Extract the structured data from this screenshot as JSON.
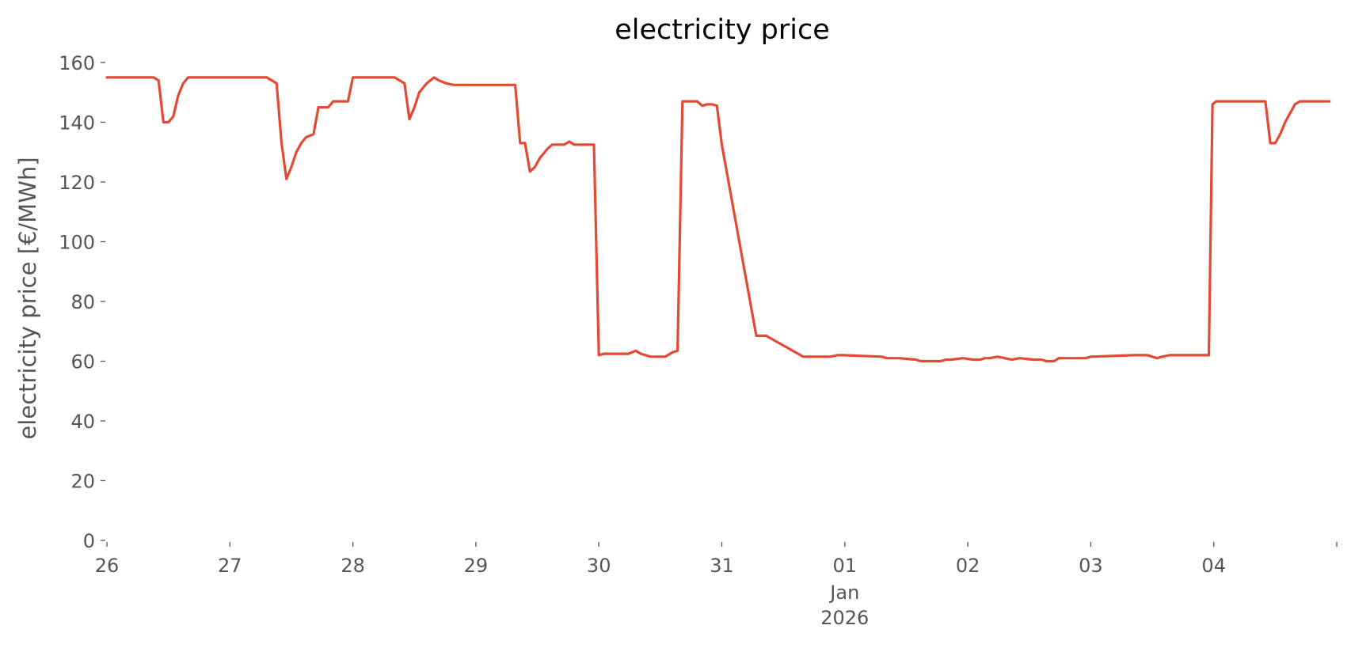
{
  "chart_data": {
    "type": "line",
    "title": "electricity price",
    "xlabel": "",
    "ylabel": "electricity price [€/MWh]",
    "ylim": [
      0,
      160
    ],
    "yticks": [
      0,
      20,
      40,
      60,
      80,
      100,
      120,
      140,
      160
    ],
    "xlim": [
      0,
      10
    ],
    "x_unit": "day",
    "x_ticks": [
      {
        "x": 0,
        "label": "26",
        "sublabel": ""
      },
      {
        "x": 1,
        "label": "27",
        "sublabel": ""
      },
      {
        "x": 2,
        "label": "28",
        "sublabel": ""
      },
      {
        "x": 3,
        "label": "29",
        "sublabel": ""
      },
      {
        "x": 4,
        "label": "30",
        "sublabel": ""
      },
      {
        "x": 5,
        "label": "31",
        "sublabel": ""
      },
      {
        "x": 6,
        "label": "01",
        "sublabel": "Jan",
        "sublabel2": "2026"
      },
      {
        "x": 7,
        "label": "02",
        "sublabel": ""
      },
      {
        "x": 8,
        "label": "03",
        "sublabel": ""
      },
      {
        "x": 9,
        "label": "04",
        "sublabel": ""
      },
      {
        "x": 10,
        "label": "",
        "sublabel": ""
      }
    ],
    "grid": false,
    "colors": {
      "line": "#E24A33",
      "text": "#555555",
      "title": "#000000"
    },
    "series": [
      {
        "x": [
          0,
          0.35,
          0.38,
          0.42,
          0.46,
          0.5,
          0.54,
          0.58,
          0.62,
          0.66,
          0.7,
          1.0,
          1.3,
          1.38,
          1.42,
          1.46,
          1.5,
          1.54,
          1.58,
          1.62,
          1.68,
          1.72,
          1.8,
          1.84,
          1.9,
          1.96,
          2.0,
          2.04,
          2.34,
          2.42,
          2.46,
          2.5,
          2.54,
          2.6,
          2.66,
          2.7,
          2.76,
          2.82,
          2.9,
          3.0,
          3.32,
          3.36,
          3.4,
          3.44,
          3.48,
          3.52,
          3.58,
          3.62,
          3.66,
          3.72,
          3.76,
          3.8,
          3.84,
          3.96,
          4.0,
          4.04,
          4.08,
          4.24,
          4.3,
          4.34,
          4.38,
          4.42,
          4.54,
          4.6,
          4.64,
          4.68,
          4.72,
          4.8,
          4.84,
          4.88,
          4.92,
          4.96,
          5.0,
          5.28,
          5.32,
          5.36,
          5.64,
          5.66,
          5.84,
          5.88,
          5.94,
          5.98,
          6.3,
          6.34,
          6.4,
          6.44,
          6.58,
          6.62,
          6.78,
          6.82,
          6.86,
          6.96,
          7.04,
          7.1,
          7.14,
          7.18,
          7.24,
          7.36,
          7.42,
          7.54,
          7.6,
          7.64,
          7.7,
          7.74,
          7.86,
          7.96,
          8.0,
          8.36,
          8.42,
          8.46,
          8.5,
          8.54,
          8.58,
          8.64,
          8.68,
          8.74,
          8.96,
          8.99,
          9.02,
          9.06,
          9.38,
          9.42,
          9.46,
          9.5,
          9.54,
          9.58,
          9.62,
          9.66,
          9.7,
          9.74,
          9.8,
          9.94
        ],
        "values": [
          155,
          155,
          155,
          154,
          140,
          140,
          142,
          149,
          153,
          155,
          155,
          155,
          155,
          153,
          133,
          121,
          125,
          130,
          133,
          135,
          136,
          145,
          145,
          147,
          147,
          147,
          155,
          155,
          155,
          153,
          141,
          145,
          150,
          153,
          155,
          154,
          153,
          152.5,
          152.5,
          152.5,
          152.5,
          133,
          133,
          123.5,
          125,
          128,
          131,
          132.5,
          132.5,
          132.5,
          133.5,
          132.5,
          132.5,
          132.5,
          62,
          62.5,
          62.5,
          62.5,
          63.5,
          62.5,
          62,
          61.5,
          61.5,
          63,
          63.5,
          147,
          147,
          147,
          145.5,
          146,
          146,
          145.5,
          132.5,
          68.5,
          68.5,
          68.5,
          62,
          61.5,
          61.5,
          61.5,
          62,
          62,
          61.5,
          61,
          61,
          61,
          60.5,
          60,
          60,
          60.5,
          60.5,
          61,
          60.5,
          60.5,
          61,
          61,
          61.5,
          60.5,
          61,
          60.5,
          60.5,
          60,
          60,
          61,
          61,
          61,
          61.5,
          62,
          62,
          62,
          61.5,
          61,
          61.5,
          62,
          62,
          62,
          62,
          146,
          147,
          147,
          147,
          147,
          133,
          133,
          136,
          140,
          143,
          146,
          147,
          147,
          147,
          147
        ]
      }
    ]
  }
}
